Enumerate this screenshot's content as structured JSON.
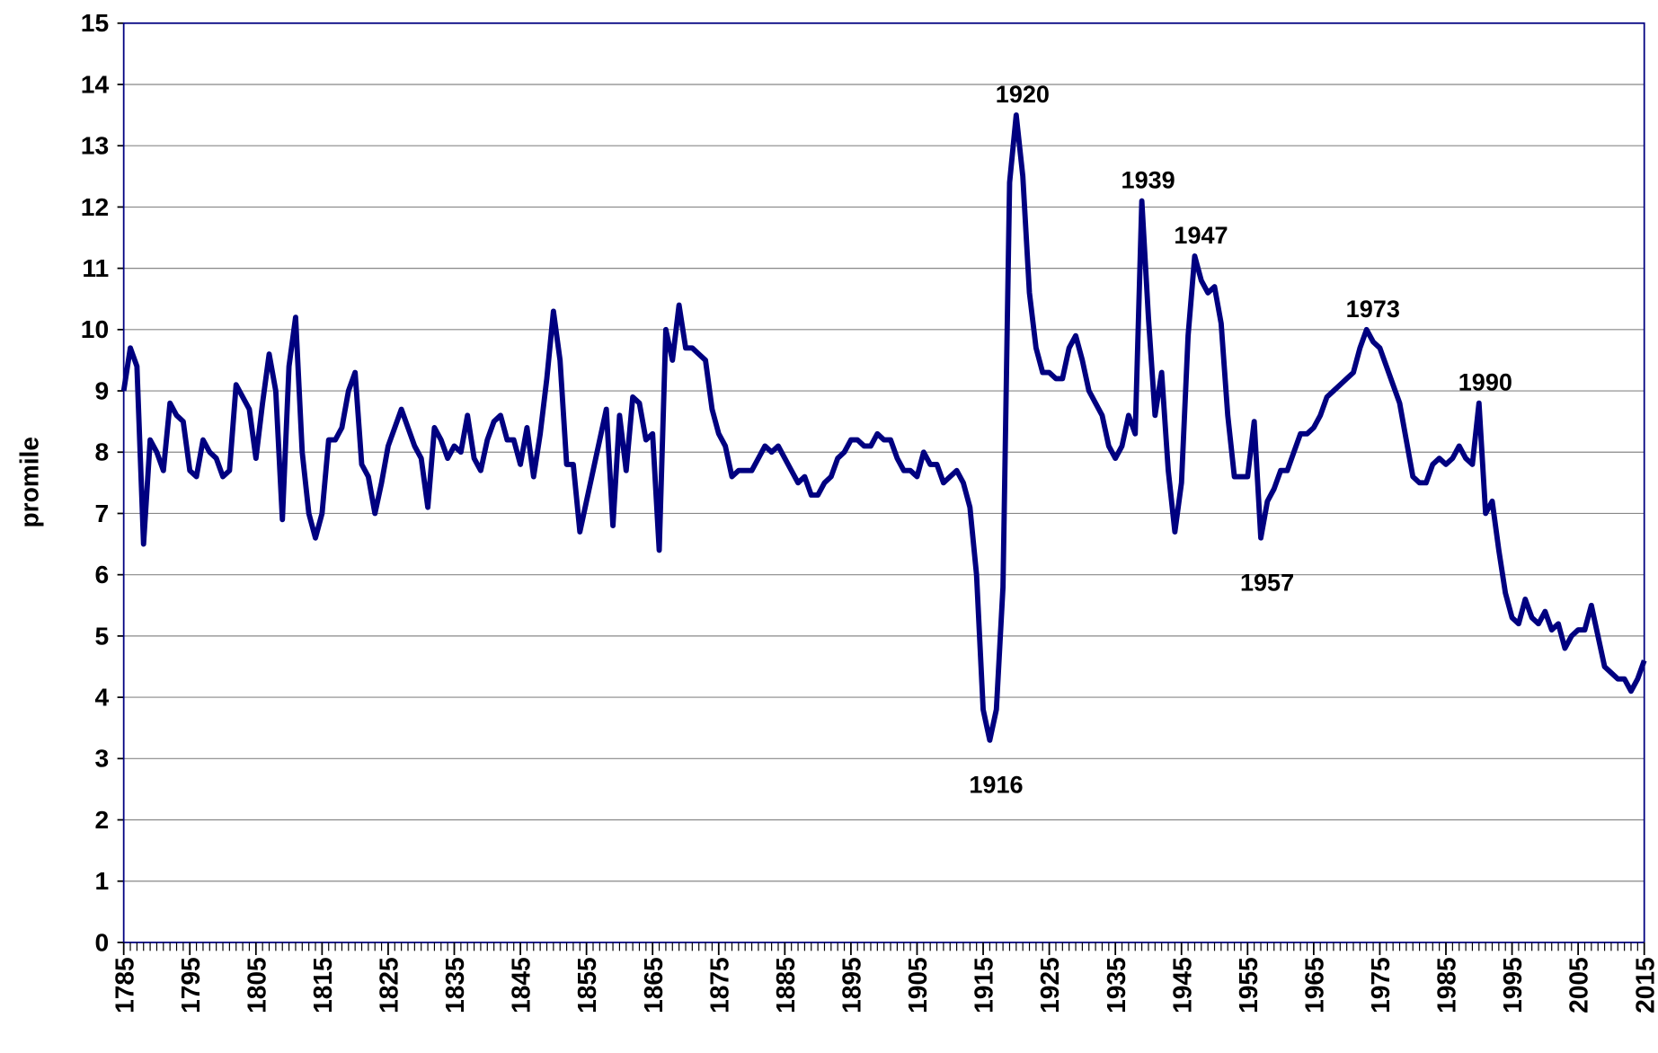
{
  "chart_data": {
    "type": "line",
    "ylabel": "promile",
    "x": [
      1785,
      1786,
      1787,
      1788,
      1789,
      1790,
      1791,
      1792,
      1793,
      1794,
      1795,
      1796,
      1797,
      1798,
      1799,
      1800,
      1801,
      1802,
      1803,
      1804,
      1805,
      1806,
      1807,
      1808,
      1809,
      1810,
      1811,
      1812,
      1813,
      1814,
      1815,
      1816,
      1817,
      1818,
      1819,
      1820,
      1821,
      1822,
      1823,
      1824,
      1825,
      1826,
      1827,
      1828,
      1829,
      1830,
      1831,
      1832,
      1833,
      1834,
      1835,
      1836,
      1837,
      1838,
      1839,
      1840,
      1841,
      1842,
      1843,
      1844,
      1845,
      1846,
      1847,
      1848,
      1849,
      1850,
      1851,
      1852,
      1853,
      1854,
      1855,
      1856,
      1857,
      1858,
      1859,
      1860,
      1861,
      1862,
      1863,
      1864,
      1865,
      1866,
      1867,
      1868,
      1869,
      1870,
      1871,
      1872,
      1873,
      1874,
      1875,
      1876,
      1877,
      1878,
      1879,
      1880,
      1881,
      1882,
      1883,
      1884,
      1885,
      1886,
      1887,
      1888,
      1889,
      1890,
      1891,
      1892,
      1893,
      1894,
      1895,
      1896,
      1897,
      1898,
      1899,
      1900,
      1901,
      1902,
      1903,
      1904,
      1905,
      1906,
      1907,
      1908,
      1909,
      1910,
      1911,
      1912,
      1913,
      1914,
      1915,
      1916,
      1917,
      1918,
      1919,
      1920,
      1921,
      1922,
      1923,
      1924,
      1925,
      1926,
      1927,
      1928,
      1929,
      1930,
      1931,
      1932,
      1933,
      1934,
      1935,
      1936,
      1937,
      1938,
      1939,
      1940,
      1941,
      1942,
      1943,
      1944,
      1945,
      1946,
      1947,
      1948,
      1949,
      1950,
      1951,
      1952,
      1953,
      1954,
      1955,
      1956,
      1957,
      1958,
      1959,
      1960,
      1961,
      1962,
      1963,
      1964,
      1965,
      1966,
      1967,
      1968,
      1969,
      1970,
      1971,
      1972,
      1973,
      1974,
      1975,
      1976,
      1977,
      1978,
      1979,
      1980,
      1981,
      1982,
      1983,
      1984,
      1985,
      1986,
      1987,
      1988,
      1989,
      1990,
      1991,
      1992,
      1993,
      1994,
      1995,
      1996,
      1997,
      1998,
      1999,
      2000,
      2001,
      2002,
      2003,
      2004,
      2005,
      2006,
      2007,
      2008,
      2009,
      2010,
      2011,
      2012,
      2013,
      2014,
      2015
    ],
    "series": [
      {
        "name": "promile",
        "color": "#000080",
        "values": [
          9.0,
          9.7,
          9.4,
          6.5,
          8.2,
          8.0,
          7.7,
          8.8,
          8.6,
          8.5,
          7.7,
          7.6,
          8.2,
          8.0,
          7.9,
          7.6,
          7.7,
          9.1,
          8.9,
          8.7,
          7.9,
          8.8,
          9.6,
          9.0,
          6.9,
          9.4,
          10.2,
          8.0,
          7.0,
          6.6,
          7.0,
          8.2,
          8.2,
          8.4,
          9.0,
          9.3,
          7.8,
          7.6,
          7.0,
          7.5,
          8.1,
          8.4,
          8.7,
          8.4,
          8.1,
          7.9,
          7.1,
          8.4,
          8.2,
          7.9,
          8.1,
          8.0,
          8.6,
          7.9,
          7.7,
          8.2,
          8.5,
          8.6,
          8.2,
          8.2,
          7.8,
          8.4,
          7.6,
          8.3,
          9.2,
          10.3,
          9.5,
          7.8,
          7.8,
          6.7,
          7.2,
          7.7,
          8.2,
          8.7,
          6.8,
          8.6,
          7.7,
          8.9,
          8.8,
          8.2,
          8.3,
          6.4,
          10.0,
          9.5,
          10.4,
          9.7,
          9.7,
          9.6,
          9.5,
          8.7,
          8.3,
          8.1,
          7.6,
          7.7,
          7.7,
          7.7,
          7.9,
          8.1,
          8.0,
          8.1,
          7.9,
          7.7,
          7.5,
          7.6,
          7.3,
          7.3,
          7.5,
          7.6,
          7.9,
          8.0,
          8.2,
          8.2,
          8.1,
          8.1,
          8.3,
          8.2,
          8.2,
          7.9,
          7.7,
          7.7,
          7.6,
          8.0,
          7.8,
          7.8,
          7.5,
          7.6,
          7.7,
          7.5,
          7.1,
          6.0,
          3.8,
          3.3,
          3.8,
          5.8,
          12.4,
          13.5,
          12.5,
          10.6,
          9.7,
          9.3,
          9.3,
          9.2,
          9.2,
          9.7,
          9.9,
          9.5,
          9.0,
          8.8,
          8.6,
          8.1,
          7.9,
          8.1,
          8.6,
          8.3,
          12.1,
          10.2,
          8.6,
          9.3,
          7.7,
          6.7,
          7.5,
          9.9,
          11.2,
          10.8,
          10.6,
          10.7,
          10.1,
          8.6,
          7.6,
          7.6,
          7.6,
          8.5,
          6.6,
          7.2,
          7.4,
          7.7,
          7.7,
          8.0,
          8.3,
          8.3,
          8.4,
          8.6,
          8.9,
          9.0,
          9.1,
          9.2,
          9.3,
          9.7,
          10.0,
          9.8,
          9.7,
          9.4,
          9.1,
          8.8,
          8.2,
          7.6,
          7.5,
          7.5,
          7.8,
          7.9,
          7.8,
          7.9,
          8.1,
          7.9,
          7.8,
          8.8,
          7.0,
          7.2,
          6.4,
          5.7,
          5.3,
          5.2,
          5.6,
          5.3,
          5.2,
          5.4,
          5.1,
          5.2,
          4.8,
          5.0,
          5.1,
          5.1,
          5.5,
          5.0,
          4.5,
          4.4,
          4.3,
          4.3,
          4.1,
          4.3,
          4.6
        ]
      }
    ],
    "xlim": [
      1785,
      2015
    ],
    "xticks": [
      1785,
      1795,
      1805,
      1815,
      1825,
      1835,
      1845,
      1855,
      1865,
      1875,
      1885,
      1895,
      1905,
      1915,
      1925,
      1935,
      1945,
      1955,
      1965,
      1975,
      1985,
      1995,
      2005,
      2015
    ],
    "ylim": [
      0,
      15
    ],
    "yticks": [
      0,
      1,
      2,
      3,
      4,
      5,
      6,
      7,
      8,
      9,
      10,
      11,
      12,
      13,
      14,
      15
    ],
    "grid": true,
    "annotations": [
      {
        "x": 1916,
        "label": "1916",
        "position": "below"
      },
      {
        "x": 1920,
        "label": "1920",
        "position": "above"
      },
      {
        "x": 1939,
        "label": "1939",
        "position": "above"
      },
      {
        "x": 1947,
        "label": "1947",
        "position": "above"
      },
      {
        "x": 1957,
        "label": "1957",
        "position": "below"
      },
      {
        "x": 1973,
        "label": "1973",
        "position": "above"
      },
      {
        "x": 1990,
        "label": "1990",
        "position": "above"
      }
    ]
  }
}
